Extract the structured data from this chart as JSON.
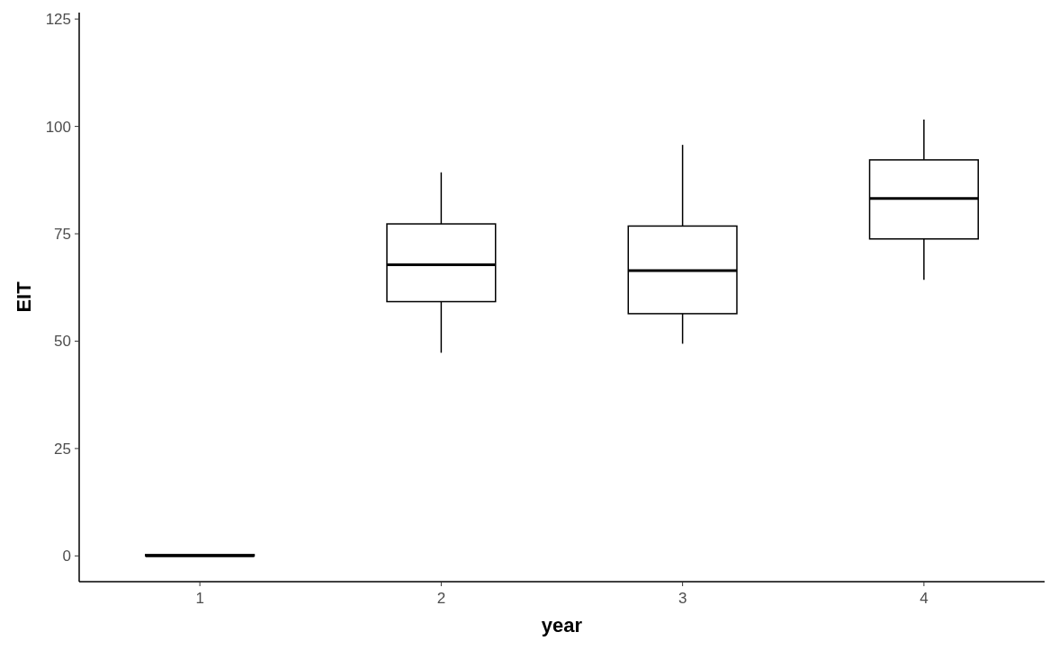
{
  "chart_data": {
    "type": "box",
    "xlabel": "year",
    "ylabel": "EIT",
    "categories": [
      "1",
      "2",
      "3",
      "4"
    ],
    "boxes": [
      {
        "low": 0,
        "q1": 0,
        "median": 0,
        "q3": 0.3,
        "high": 0.3
      },
      {
        "low": 47.3,
        "q1": 59.2,
        "median": 67.8,
        "q3": 77.3,
        "high": 89.3
      },
      {
        "low": 49.4,
        "q1": 56.4,
        "median": 66.4,
        "q3": 76.8,
        "high": 95.7
      },
      {
        "low": 64.3,
        "q1": 73.8,
        "median": 83.2,
        "q3": 92.2,
        "high": 101.6
      }
    ],
    "color": "#ffffff",
    "ylim": [
      -6,
      126.5
    ],
    "yticks": [
      0,
      25,
      50,
      75,
      100,
      125
    ],
    "grid": false
  }
}
